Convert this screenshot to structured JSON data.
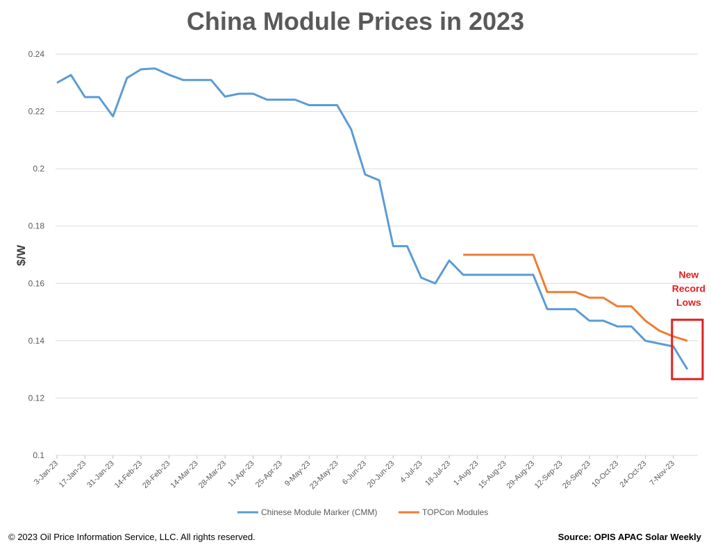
{
  "chart_data": {
    "type": "line",
    "title": "China Module Prices in 2023",
    "ylabel": "$/W",
    "xlabel": "",
    "ylim": [
      0.1,
      0.24
    ],
    "yticks": [
      "0.24",
      "0.22",
      "0.2",
      "0.18",
      "0.16",
      "0.14",
      "0.12",
      "0.1"
    ],
    "ytick_values": [
      0.24,
      0.22,
      0.2,
      0.18,
      0.16,
      0.14,
      0.12,
      0.1
    ],
    "categories": [
      "3-Jan-23",
      "10-Jan-23",
      "17-Jan-23",
      "24-Jan-23",
      "31-Jan-23",
      "7-Feb-23",
      "14-Feb-23",
      "21-Feb-23",
      "28-Feb-23",
      "7-Mar-23",
      "14-Mar-23",
      "21-Mar-23",
      "28-Mar-23",
      "4-Apr-23",
      "11-Apr-23",
      "18-Apr-23",
      "25-Apr-23",
      "2-May-23",
      "9-May-23",
      "16-May-23",
      "23-May-23",
      "30-May-23",
      "6-Jun-23",
      "13-Jun-23",
      "20-Jun-23",
      "27-Jun-23",
      "4-Jul-23",
      "11-Jul-23",
      "18-Jul-23",
      "25-Jul-23",
      "1-Aug-23",
      "8-Aug-23",
      "15-Aug-23",
      "22-Aug-23",
      "29-Aug-23",
      "5-Sep-23",
      "12-Sep-23",
      "19-Sep-23",
      "26-Sep-23",
      "3-Oct-23",
      "10-Oct-23",
      "17-Oct-23",
      "24-Oct-23",
      "31-Oct-23",
      "7-Nov-23",
      "14-Nov-23"
    ],
    "xtick_labels": [
      "3-Jan-23",
      "17-Jan-23",
      "31-Jan-23",
      "14-Feb-23",
      "28-Feb-23",
      "14-Mar-23",
      "28-Mar-23",
      "11-Apr-23",
      "25-Apr-23",
      "9-May-23",
      "23-May-23",
      "6-Jun-23",
      "20-Jun-23",
      "4-Jul-23",
      "18-Jul-23",
      "1-Aug-23",
      "15-Aug-23",
      "29-Aug-23",
      "12-Sep-23",
      "26-Sep-23",
      "10-Oct-23",
      "24-Oct-23",
      "7-Nov-23"
    ],
    "series": [
      {
        "name": "Chinese Module Marker (CMM)",
        "color": "#5b9bd5",
        "values": [
          0.23,
          0.2327,
          0.225,
          0.225,
          0.2183,
          0.2317,
          0.2347,
          0.235,
          0.2328,
          0.231,
          0.231,
          0.231,
          0.2252,
          0.2262,
          0.2262,
          0.2241,
          0.2241,
          0.2241,
          0.2222,
          0.2222,
          0.2222,
          0.2138,
          0.198,
          0.196,
          0.173,
          0.173,
          0.162,
          0.16,
          0.168,
          0.163,
          0.163,
          0.163,
          0.163,
          0.163,
          0.163,
          0.151,
          0.151,
          0.151,
          0.147,
          0.147,
          0.145,
          0.145,
          0.14,
          0.139,
          0.138,
          0.13
        ]
      },
      {
        "name": "TOPCon Modules",
        "color": "#ed7d31",
        "values": [
          null,
          null,
          null,
          null,
          null,
          null,
          null,
          null,
          null,
          null,
          null,
          null,
          null,
          null,
          null,
          null,
          null,
          null,
          null,
          null,
          null,
          null,
          null,
          null,
          null,
          null,
          null,
          null,
          null,
          0.17,
          0.17,
          0.17,
          0.17,
          0.17,
          0.17,
          0.157,
          0.157,
          0.157,
          0.155,
          0.155,
          0.152,
          0.152,
          0.147,
          0.1435,
          0.1415,
          0.14
        ]
      }
    ],
    "grid": true,
    "legend_position": "bottom",
    "annotation": {
      "lines": [
        "New",
        "Record",
        "Lows"
      ],
      "color": "#e0201e"
    }
  },
  "footer": {
    "copyright": "© 2023  Oil Price Information Service, LLC. All rights reserved.",
    "source": "Source: OPIS APAC Solar Weekly"
  }
}
